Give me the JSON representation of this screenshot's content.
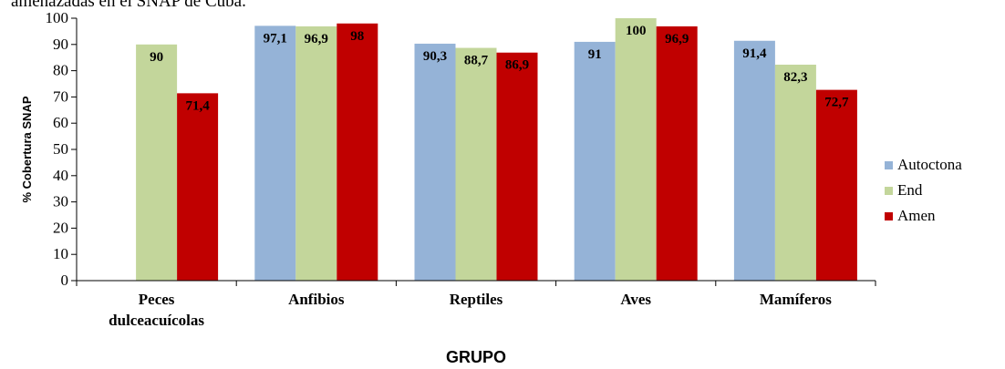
{
  "caption": "amenazadas en el SNAP de Cuba.",
  "chart_data": {
    "type": "bar",
    "title": "",
    "xlabel": "GRUPO",
    "ylabel": "% Cobertura SNAP",
    "ylim": [
      0,
      100
    ],
    "yticks": [
      0,
      10,
      20,
      30,
      40,
      50,
      60,
      70,
      80,
      90,
      100
    ],
    "grid": false,
    "legend_position": "right",
    "categories": [
      [
        "Peces",
        "dulceacuícolas"
      ],
      [
        "Anfibios"
      ],
      [
        "Reptiles"
      ],
      [
        "Aves"
      ],
      [
        "Mamíferos"
      ]
    ],
    "series": [
      {
        "name": "Autoctona",
        "color": "#95b3d7",
        "values": [
          null,
          97.1,
          90.3,
          91,
          91.4
        ],
        "labels": [
          "",
          "97,1",
          "90,3",
          "91",
          "91,4"
        ]
      },
      {
        "name": "End",
        "color": "#c3d69b",
        "values": [
          90,
          96.9,
          88.7,
          100,
          82.3
        ],
        "labels": [
          "90",
          "96,9",
          "88,7",
          "100",
          "82,3"
        ]
      },
      {
        "name": "Amen",
        "color": "#c00000",
        "values": [
          71.4,
          98,
          86.9,
          96.9,
          72.7
        ],
        "labels": [
          "71,4",
          "98",
          "86,9",
          "96,9",
          "72,7"
        ]
      }
    ]
  }
}
